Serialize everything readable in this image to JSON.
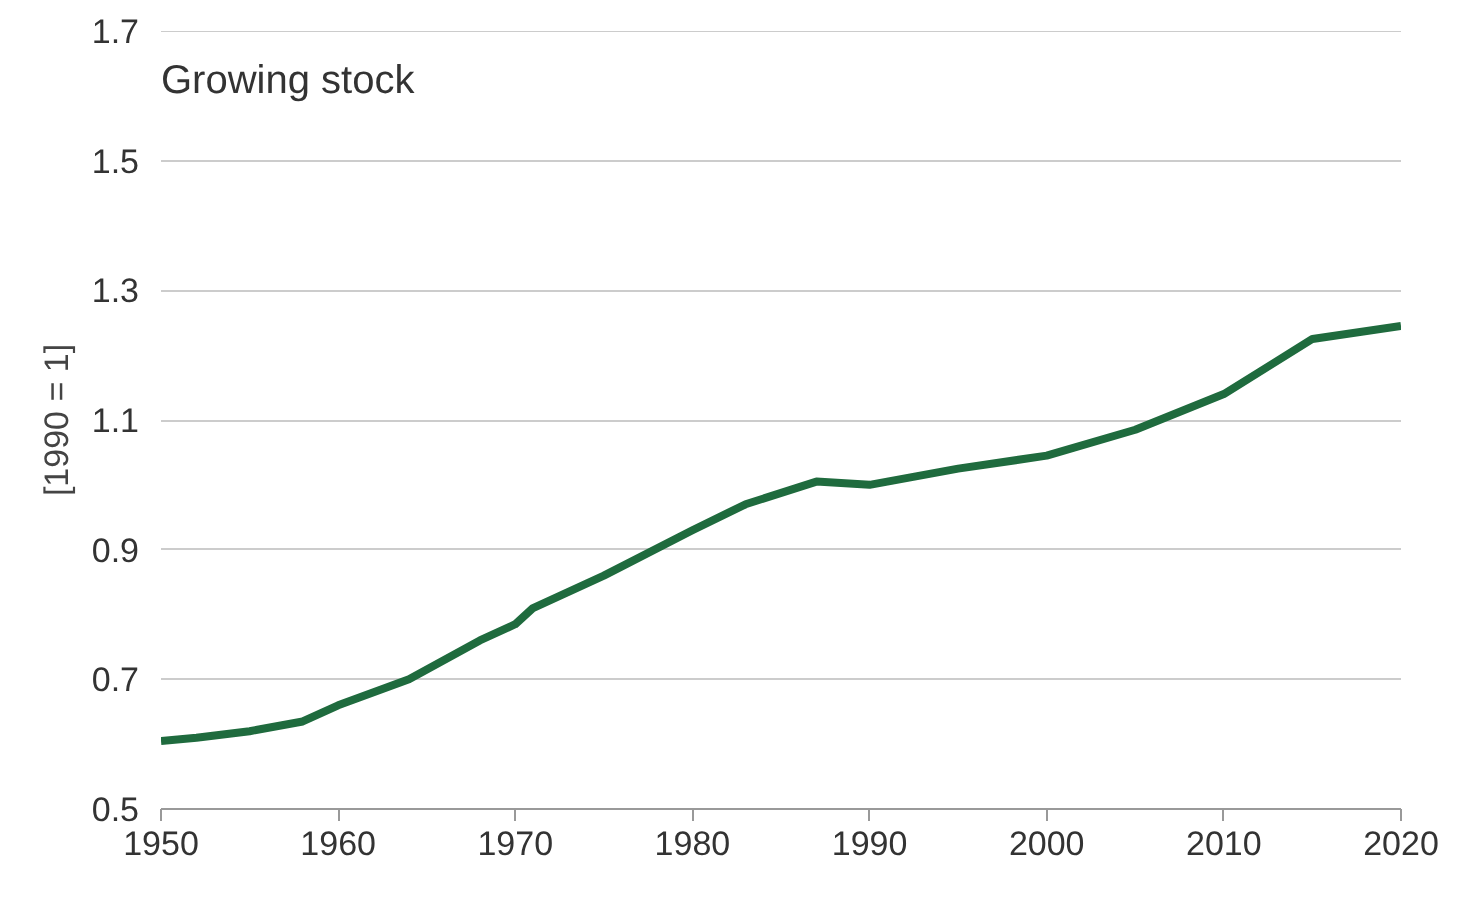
{
  "chart_data": {
    "type": "line",
    "title": "Growing stock",
    "ylabel": "[1990 = 1]",
    "x": [
      1950,
      1952,
      1955,
      1958,
      1960,
      1964,
      1968,
      1970,
      1971,
      1975,
      1980,
      1983,
      1987,
      1990,
      1995,
      2000,
      2005,
      2010,
      2015,
      2020
    ],
    "series": [
      {
        "color": "#1f6b3e",
        "values": [
          0.605,
          0.61,
          0.62,
          0.635,
          0.66,
          0.7,
          0.76,
          0.785,
          0.81,
          0.86,
          0.93,
          0.97,
          1.005,
          1.0,
          1.025,
          1.045,
          1.085,
          1.14,
          1.225,
          1.245
        ]
      }
    ],
    "xlim": [
      1950,
      2020
    ],
    "xticks": [
      1950,
      1960,
      1970,
      1980,
      1990,
      2000,
      2010,
      2020
    ],
    "ylim": [
      0.5,
      1.7
    ],
    "yticks": [
      0.5,
      0.7,
      0.9,
      1.1,
      1.3,
      1.5,
      1.7
    ],
    "grid": "y",
    "marker": "none",
    "line_style": "solid"
  }
}
